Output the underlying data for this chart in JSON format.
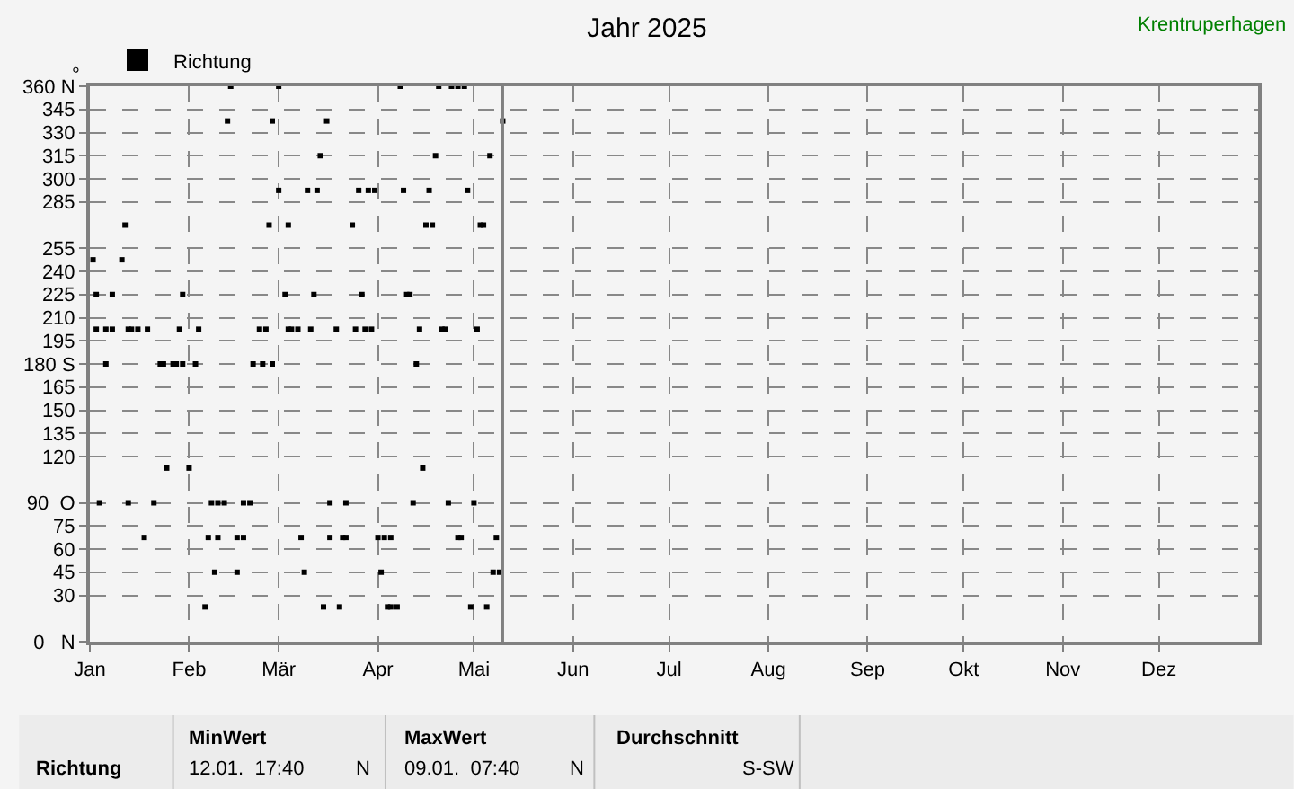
{
  "chart_data": {
    "type": "scatter",
    "title": "Jahr 2025",
    "ylabel": "°",
    "xlim": [
      "2025-01-01",
      "2026-01-01"
    ],
    "xticks": [
      {
        "value": "2025-01-01",
        "label": "Jan"
      },
      {
        "value": "2025-02-01",
        "label": "Feb"
      },
      {
        "value": "2025-03-01",
        "label": "Mär"
      },
      {
        "value": "2025-04-01",
        "label": "Apr"
      },
      {
        "value": "2025-05-01",
        "label": "Mai"
      },
      {
        "value": "2025-06-01",
        "label": "Jun"
      },
      {
        "value": "2025-07-01",
        "label": "Jul"
      },
      {
        "value": "2025-08-01",
        "label": "Aug"
      },
      {
        "value": "2025-09-01",
        "label": "Sep"
      },
      {
        "value": "2025-10-01",
        "label": "Okt"
      },
      {
        "value": "2025-11-01",
        "label": "Nov"
      },
      {
        "value": "2025-12-01",
        "label": "Dez"
      }
    ],
    "ylim": [
      0,
      360
    ],
    "yticks": [
      {
        "value": 0,
        "label": "0   N"
      },
      30,
      45,
      60,
      75,
      {
        "value": 90,
        "label": "90  O"
      },
      120,
      135,
      150,
      165,
      {
        "value": 180,
        "label": "180 S"
      },
      195,
      210,
      225,
      240,
      255,
      285,
      300,
      315,
      330,
      345,
      {
        "value": 360,
        "label": "360 N"
      }
    ],
    "grid": true,
    "legend": "top left",
    "marker": "square",
    "series": [
      {
        "name": "Richtung",
        "color": "#000000",
        "x": [
          "2025-02-14",
          "2025-03-01",
          "2025-04-08",
          "2025-04-20",
          "2025-04-24",
          "2025-04-26",
          "2025-04-28",
          "2025-02-13",
          "2025-02-27",
          "2025-03-16",
          "2025-05-10",
          "2025-03-14",
          "2025-04-19",
          "2025-05-06",
          "2025-03-01",
          "2025-03-10",
          "2025-03-13",
          "2025-03-26",
          "2025-03-29",
          "2025-03-31",
          "2025-04-09",
          "2025-04-17",
          "2025-04-29",
          "2025-01-12",
          "2025-02-26",
          "2025-03-04",
          "2025-03-24",
          "2025-04-16",
          "2025-04-18",
          "2025-05-03",
          "2025-05-04",
          "2025-01-02",
          "2025-01-11",
          "2025-01-03",
          "2025-01-08",
          "2025-01-30",
          "2025-03-03",
          "2025-03-12",
          "2025-03-27",
          "2025-04-10",
          "2025-04-11",
          "2025-01-03",
          "2025-01-06",
          "2025-01-08",
          "2025-01-13",
          "2025-01-14",
          "2025-01-16",
          "2025-01-19",
          "2025-01-29",
          "2025-02-04",
          "2025-02-23",
          "2025-02-25",
          "2025-03-04",
          "2025-03-05",
          "2025-03-07",
          "2025-03-11",
          "2025-03-19",
          "2025-03-25",
          "2025-03-28",
          "2025-03-30",
          "2025-04-14",
          "2025-04-21",
          "2025-04-22",
          "2025-05-02",
          "2025-01-06",
          "2025-01-23",
          "2025-01-24",
          "2025-01-27",
          "2025-01-28",
          "2025-01-30",
          "2025-02-03",
          "2025-02-21",
          "2025-02-24",
          "2025-02-27",
          "2025-04-13",
          "2025-01-25",
          "2025-02-01",
          "2025-04-15",
          "2025-01-04",
          "2025-01-13",
          "2025-01-21",
          "2025-02-08",
          "2025-02-10",
          "2025-02-12",
          "2025-02-18",
          "2025-02-20",
          "2025-03-17",
          "2025-03-22",
          "2025-04-12",
          "2025-04-23",
          "2025-05-01",
          "2025-01-18",
          "2025-02-07",
          "2025-02-10",
          "2025-02-16",
          "2025-02-18",
          "2025-03-08",
          "2025-03-17",
          "2025-03-21",
          "2025-03-22",
          "2025-04-01",
          "2025-04-03",
          "2025-04-05",
          "2025-04-26",
          "2025-04-27",
          "2025-05-08",
          "2025-02-09",
          "2025-02-16",
          "2025-03-09",
          "2025-04-02",
          "2025-05-07",
          "2025-05-09",
          "2025-02-06",
          "2025-03-15",
          "2025-03-20",
          "2025-04-04",
          "2025-04-05",
          "2025-04-07",
          "2025-04-30",
          "2025-05-05"
        ],
        "values": [
          360,
          360,
          360,
          360,
          360,
          360,
          360,
          337.5,
          337.5,
          337.5,
          337.5,
          315,
          315,
          315,
          292.5,
          292.5,
          292.5,
          292.5,
          292.5,
          292.5,
          292.5,
          292.5,
          292.5,
          270,
          270,
          270,
          270,
          270,
          270,
          270,
          270,
          247.5,
          247.5,
          225,
          225,
          225,
          225,
          225,
          225,
          225,
          225,
          202.5,
          202.5,
          202.5,
          202.5,
          202.5,
          202.5,
          202.5,
          202.5,
          202.5,
          202.5,
          202.5,
          202.5,
          202.5,
          202.5,
          202.5,
          202.5,
          202.5,
          202.5,
          202.5,
          202.5,
          202.5,
          202.5,
          202.5,
          180,
          180,
          180,
          180,
          180,
          180,
          180,
          180,
          180,
          180,
          180,
          112.5,
          112.5,
          112.5,
          90,
          90,
          90,
          90,
          90,
          90,
          90,
          90,
          90,
          90,
          90,
          90,
          90,
          67.5,
          67.5,
          67.5,
          67.5,
          67.5,
          67.5,
          67.5,
          67.5,
          67.5,
          67.5,
          67.5,
          67.5,
          67.5,
          67.5,
          67.5,
          45,
          45,
          45,
          45,
          45,
          45,
          22.5,
          22.5,
          22.5,
          22.5,
          22.5,
          22.5,
          22.5,
          22.5
        ]
      }
    ],
    "ref_lines": [
      {
        "axis": "x",
        "value": "2025-05-10",
        "color": "#808080",
        "line_style": "solid"
      }
    ],
    "annotations": [
      "Krentruperhagen",
      "Richtung",
      "MinWert",
      "12.01.  17:40",
      "N",
      "MaxWert",
      "09.01.  07:40",
      "N",
      "Durchschnitt",
      "S-SW"
    ]
  }
}
